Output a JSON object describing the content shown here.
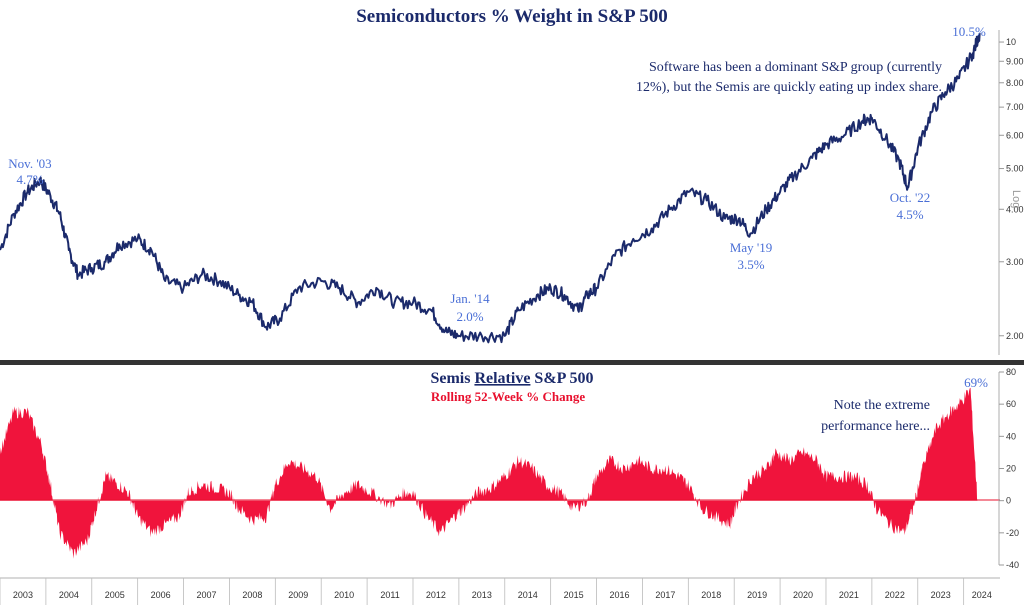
{
  "chart_data": [
    {
      "type": "line",
      "title": "Semiconductors % Weight in S&P 500",
      "y_scale": "log",
      "ylim": [
        1.8,
        10.8
      ],
      "yticks": [
        "2.00",
        "3.00",
        "4.00",
        "5.00",
        "6.00",
        "7.00",
        "8.00",
        "9.00",
        "10"
      ],
      "ylabel": "Log",
      "line_color": "#1b2a6b",
      "series": [
        {
          "values": [
            [
              2003.0,
              3.2
            ],
            [
              2003.3,
              3.9
            ],
            [
              2003.6,
              4.4
            ],
            [
              2003.87,
              4.7
            ],
            [
              2004.1,
              4.3
            ],
            [
              2004.3,
              3.9
            ],
            [
              2004.5,
              3.2
            ],
            [
              2004.7,
              2.8
            ],
            [
              2005.0,
              2.9
            ],
            [
              2005.3,
              3.0
            ],
            [
              2005.6,
              3.3
            ],
            [
              2006.0,
              3.4
            ],
            [
              2006.3,
              3.2
            ],
            [
              2006.6,
              2.7
            ],
            [
              2007.0,
              2.6
            ],
            [
              2007.4,
              2.8
            ],
            [
              2007.8,
              2.7
            ],
            [
              2008.2,
              2.5
            ],
            [
              2008.5,
              2.4
            ],
            [
              2008.8,
              2.1
            ],
            [
              2009.1,
              2.2
            ],
            [
              2009.5,
              2.6
            ],
            [
              2010.0,
              2.7
            ],
            [
              2010.4,
              2.6
            ],
            [
              2010.8,
              2.4
            ],
            [
              2011.2,
              2.6
            ],
            [
              2011.6,
              2.4
            ],
            [
              2012.0,
              2.4
            ],
            [
              2012.4,
              2.3
            ],
            [
              2012.7,
              2.05
            ],
            [
              2013.0,
              2.0
            ],
            [
              2013.5,
              2.0
            ],
            [
              2014.0,
              2.0
            ],
            [
              2014.3,
              2.3
            ],
            [
              2014.7,
              2.5
            ],
            [
              2015.0,
              2.6
            ],
            [
              2015.3,
              2.5
            ],
            [
              2015.6,
              2.3
            ],
            [
              2015.8,
              2.5
            ],
            [
              2016.0,
              2.6
            ],
            [
              2016.4,
              3.1
            ],
            [
              2016.8,
              3.4
            ],
            [
              2017.2,
              3.6
            ],
            [
              2017.6,
              4.0
            ],
            [
              2018.0,
              4.4
            ],
            [
              2018.4,
              4.2
            ],
            [
              2018.8,
              3.8
            ],
            [
              2019.1,
              3.8
            ],
            [
              2019.35,
              3.5
            ],
            [
              2019.7,
              4.0
            ],
            [
              2020.0,
              4.4
            ],
            [
              2020.3,
              4.8
            ],
            [
              2020.7,
              5.3
            ],
            [
              2021.0,
              5.7
            ],
            [
              2021.4,
              6.0
            ],
            [
              2021.8,
              6.5
            ],
            [
              2022.0,
              6.6
            ],
            [
              2022.3,
              5.9
            ],
            [
              2022.6,
              5.2
            ],
            [
              2022.78,
              4.5
            ],
            [
              2023.0,
              5.6
            ],
            [
              2023.3,
              6.8
            ],
            [
              2023.6,
              7.6
            ],
            [
              2023.9,
              8.2
            ],
            [
              2024.2,
              9.4
            ],
            [
              2024.35,
              10.5
            ]
          ]
        }
      ],
      "annotations": [
        {
          "label": "Nov. '03",
          "value": "4.7%"
        },
        {
          "label": "Jan. '14",
          "value": "2.0%"
        },
        {
          "label": "May '19",
          "value": "3.5%"
        },
        {
          "label": "Oct. '22",
          "value": "4.5%"
        },
        {
          "label": "",
          "value": "10.5%"
        }
      ],
      "note_lines": [
        "Software has been a dominant S&P group (currently",
        "12%), but the Semis are quickly eating up index share."
      ]
    },
    {
      "type": "area",
      "title_prefix": "Semis ",
      "title_underlined": "Relative",
      "title_suffix": " S&P 500",
      "subtitle": "Rolling 52-Week % Change",
      "ylim": [
        -40,
        80
      ],
      "yticks": [
        "80",
        "60",
        "40",
        "20",
        "0",
        "-20",
        "-40"
      ],
      "fill_color": "#f0143c",
      "x_categories": [
        "2003",
        "2004",
        "2005",
        "2006",
        "2007",
        "2008",
        "2009",
        "2010",
        "2011",
        "2012",
        "2013",
        "2014",
        "2015",
        "2016",
        "2017",
        "2018",
        "2019",
        "2020",
        "2021",
        "2022",
        "2023",
        "2024"
      ],
      "series": [
        {
          "values": [
            [
              2003.0,
              30
            ],
            [
              2003.3,
              55
            ],
            [
              2003.6,
              55
            ],
            [
              2003.9,
              35
            ],
            [
              2004.1,
              10
            ],
            [
              2004.3,
              -20
            ],
            [
              2004.6,
              -33
            ],
            [
              2004.9,
              -25
            ],
            [
              2005.1,
              -5
            ],
            [
              2005.3,
              15
            ],
            [
              2005.5,
              12
            ],
            [
              2005.8,
              5
            ],
            [
              2006.0,
              -10
            ],
            [
              2006.3,
              -20
            ],
            [
              2006.6,
              -15
            ],
            [
              2006.9,
              -10
            ],
            [
              2007.1,
              5
            ],
            [
              2007.4,
              10
            ],
            [
              2007.7,
              8
            ],
            [
              2008.0,
              5
            ],
            [
              2008.2,
              -5
            ],
            [
              2008.5,
              -12
            ],
            [
              2008.8,
              -10
            ],
            [
              2009.0,
              10
            ],
            [
              2009.3,
              25
            ],
            [
              2009.6,
              20
            ],
            [
              2009.9,
              15
            ],
            [
              2010.2,
              -5
            ],
            [
              2010.5,
              5
            ],
            [
              2010.8,
              10
            ],
            [
              2011.1,
              5
            ],
            [
              2011.5,
              -3
            ],
            [
              2011.8,
              5
            ],
            [
              2012.0,
              5
            ],
            [
              2012.3,
              -10
            ],
            [
              2012.6,
              -20
            ],
            [
              2012.9,
              -10
            ],
            [
              2013.1,
              -5
            ],
            [
              2013.4,
              5
            ],
            [
              2013.7,
              8
            ],
            [
              2014.0,
              15
            ],
            [
              2014.3,
              25
            ],
            [
              2014.6,
              20
            ],
            [
              2014.9,
              10
            ],
            [
              2015.2,
              5
            ],
            [
              2015.5,
              -5
            ],
            [
              2015.8,
              0
            ],
            [
              2016.0,
              15
            ],
            [
              2016.3,
              25
            ],
            [
              2016.6,
              20
            ],
            [
              2016.9,
              25
            ],
            [
              2017.2,
              20
            ],
            [
              2017.5,
              20
            ],
            [
              2017.8,
              15
            ],
            [
              2018.0,
              10
            ],
            [
              2018.3,
              -5
            ],
            [
              2018.6,
              -10
            ],
            [
              2018.9,
              -15
            ],
            [
              2019.1,
              0
            ],
            [
              2019.4,
              15
            ],
            [
              2019.7,
              20
            ],
            [
              2019.9,
              30
            ],
            [
              2020.2,
              25
            ],
            [
              2020.5,
              30
            ],
            [
              2020.8,
              25
            ],
            [
              2021.0,
              15
            ],
            [
              2021.3,
              15
            ],
            [
              2021.6,
              15
            ],
            [
              2021.9,
              10
            ],
            [
              2022.1,
              -5
            ],
            [
              2022.4,
              -15
            ],
            [
              2022.7,
              -20
            ],
            [
              2022.9,
              -5
            ],
            [
              2023.1,
              20
            ],
            [
              2023.4,
              45
            ],
            [
              2023.7,
              55
            ],
            [
              2023.9,
              60
            ],
            [
              2024.15,
              69
            ],
            [
              2024.3,
              0
            ]
          ]
        }
      ],
      "peak_label": "69%",
      "note_lines": [
        "Note the extreme",
        "performance here..."
      ]
    }
  ]
}
